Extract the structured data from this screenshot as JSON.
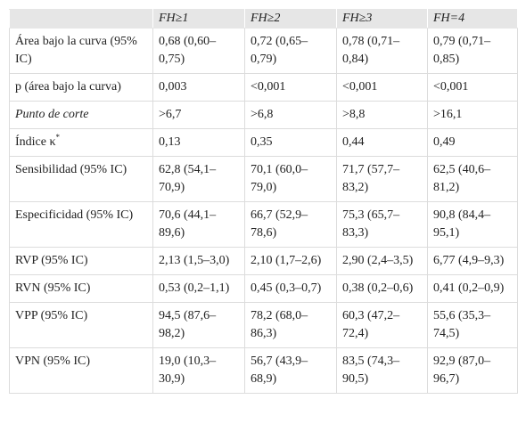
{
  "table": {
    "columns": [
      "FH≥1",
      "FH≥2",
      "FH≥3",
      "FH=4"
    ],
    "rows": [
      {
        "label": "Área bajo la curva (95% IC)",
        "values": [
          "0,68 (0,60–0,75)",
          "0,72 (0,65–0,79)",
          "0,78 (0,71–0,84)",
          "0,79 (0,71–0,85)"
        ]
      },
      {
        "label": "p (área bajo la curva)",
        "values": [
          "0,003",
          "<0,001",
          "<0,001",
          "<0,001"
        ]
      },
      {
        "label": "Punto de corte",
        "italic": true,
        "values": [
          ">6,7",
          ">6,8",
          ">8,8",
          ">16,1"
        ]
      },
      {
        "label": "Índice κ",
        "label_sup": "*",
        "values": [
          "0,13",
          "0,35",
          "0,44",
          "0,49"
        ]
      },
      {
        "label": "Sensibilidad (95% IC)",
        "values": [
          "62,8 (54,1–70,9)",
          "70,1 (60,0–79,0)",
          "71,7 (57,7–83,2)",
          "62,5 (40,6–81,2)"
        ]
      },
      {
        "label": "Especificidad (95% IC)",
        "values": [
          "70,6 (44,1–89,6)",
          "66,7 (52,9–78,6)",
          "75,3 (65,7–83,3)",
          "90,8 (84,4–95,1)"
        ]
      },
      {
        "label": "RVP (95% IC)",
        "values": [
          "2,13 (1,5–3,0)",
          "2,10 (1,7–2,6)",
          "2,90 (2,4–3,5)",
          "6,77 (4,9–9,3)"
        ]
      },
      {
        "label": "RVN (95% IC)",
        "values": [
          "0,53 (0,2–1,1)",
          "0,45 (0,3–0,7)",
          "0,38 (0,2–0,6)",
          "0,41 (0,2–0,9)"
        ]
      },
      {
        "label": "VPP (95% IC)",
        "values": [
          "94,5 (87,6–98,2)",
          "78,2 (68,0–86,3)",
          "60,3 (47,2–72,4)",
          "55,6 (35,3–74,5)"
        ]
      },
      {
        "label": "VPN (95% IC)",
        "values": [
          "19,0 (10,3–30,9)",
          "56,7 (43,9–68,9)",
          "83,5 (74,3–90,5)",
          "92,9 (87,0–96,7)"
        ]
      }
    ]
  }
}
